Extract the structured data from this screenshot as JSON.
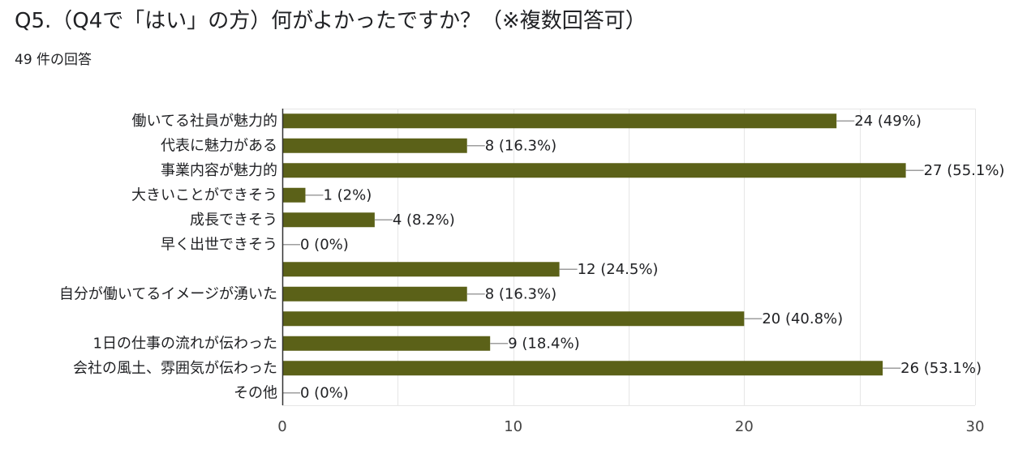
{
  "header": {
    "question": "Q5.（Q4で「はい」の方）何がよかったですか？（※複数回答可）",
    "response_count": "49 件の回答"
  },
  "colors": {
    "bar": "#5b6118",
    "grid": "#e6e6e6",
    "axis": "#333333",
    "leader": "#9e9e9e"
  },
  "chart_data": {
    "type": "bar",
    "orientation": "horizontal",
    "categories": [
      "働いてる社員が魅力的",
      "代表に魅力がある",
      "事業内容が魅力的",
      "大きいことができそう",
      "成長できそう",
      "早く出世できそう",
      "",
      "自分が働いてるイメージが湧いた",
      "",
      "1日の仕事の流れが伝わった",
      "会社の風土、雰囲気が伝わった",
      "その他"
    ],
    "values": [
      24,
      8,
      27,
      1,
      4,
      0,
      12,
      8,
      20,
      9,
      26,
      0
    ],
    "value_labels": [
      "24 (49%)",
      "8 (16.3%)",
      "27 (55.1%)",
      "1 (2%)",
      "4 (8.2%)",
      "0 (0%)",
      "12 (24.5%)",
      "8 (16.3%)",
      "20 (40.8%)",
      "9 (18.4%)",
      "26 (53.1%)",
      "0 (0%)"
    ],
    "xlim": [
      0,
      30
    ],
    "xticks": [
      0,
      10,
      20,
      30
    ],
    "xtick_labels": [
      "0",
      "10",
      "20",
      "30"
    ],
    "grid": true,
    "title": "",
    "xlabel": "",
    "ylabel": ""
  }
}
